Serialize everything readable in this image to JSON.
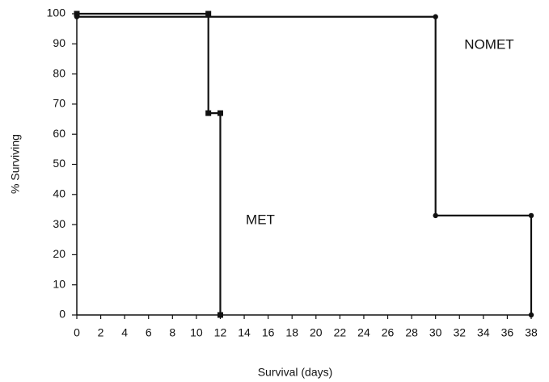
{
  "chart_data": {
    "type": "line",
    "x_label": "Survival (days)",
    "y_label": "% Surviving",
    "xlim": [
      0,
      38
    ],
    "ylim": [
      0,
      100
    ],
    "xticks": [
      0,
      2,
      4,
      6,
      8,
      10,
      12,
      14,
      16,
      18,
      20,
      22,
      24,
      26,
      28,
      30,
      32,
      34,
      36,
      38
    ],
    "yticks": [
      0,
      10,
      20,
      30,
      40,
      50,
      60,
      70,
      80,
      90,
      100
    ],
    "grid": false,
    "series": [
      {
        "name": "MET",
        "color": "#111111",
        "marker": "square",
        "x": [
          0,
          11,
          11,
          12,
          12
        ],
        "values": [
          100,
          100,
          67,
          67,
          0
        ]
      },
      {
        "name": "NOMET",
        "color": "#111111",
        "marker": "circle",
        "x": [
          0,
          30,
          30,
          38,
          38
        ],
        "values": [
          99,
          99,
          33,
          33,
          0
        ]
      }
    ]
  }
}
